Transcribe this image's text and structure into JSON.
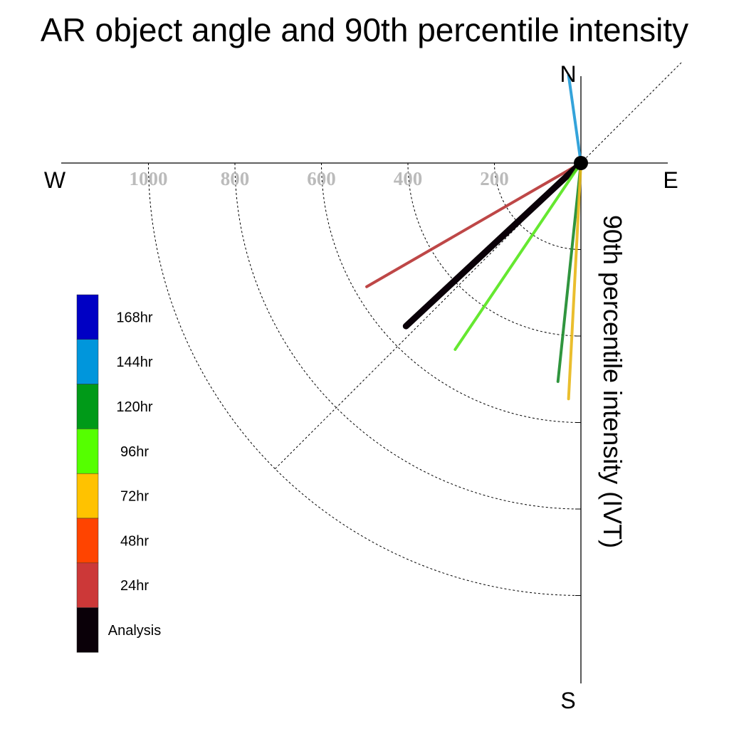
{
  "chart_data": {
    "type": "polar-vector",
    "title": "AR object angle and 90th percentile intensity",
    "radial_axis_label": "90th percentile intensity (IVT)",
    "compass_labels": {
      "north": "N",
      "south": "S",
      "east": "E",
      "west": "W"
    },
    "radial_ticks": [
      200,
      400,
      600,
      800,
      1000
    ],
    "radial_range": [
      0,
      1200
    ],
    "grid": true,
    "legend_position": "left",
    "legend": [
      {
        "label": "168hr",
        "color": "#0000c4"
      },
      {
        "label": "144hr",
        "color": "#0096dc"
      },
      {
        "label": "120hr",
        "color": "#009a18"
      },
      {
        "label": "96hr",
        "color": "#55ff00"
      },
      {
        "label": "72hr",
        "color": "#ffc200"
      },
      {
        "label": "48hr",
        "color": "#ff4400"
      },
      {
        "label": "24hr",
        "color": "#cc3838"
      },
      {
        "label": "Analysis",
        "color": "#0a0008"
      }
    ],
    "series": [
      {
        "name": "144hr",
        "color": "#1f9ad6",
        "direction_deg": 352,
        "intensity": 205
      },
      {
        "name": "24hr",
        "color": "#b83434",
        "direction_deg": 240,
        "intensity": 572
      },
      {
        "name": "Analysis",
        "color": "#0a0008",
        "direction_deg": 227,
        "intensity": 553
      },
      {
        "name": "96hr",
        "color": "#55e61a",
        "direction_deg": 214,
        "intensity": 520
      },
      {
        "name": "120hr",
        "color": "#1a8a2a",
        "direction_deg": 186,
        "intensity": 508
      },
      {
        "name": "72hr",
        "color": "#e8b818",
        "direction_deg": 183,
        "intensity": 546
      }
    ]
  }
}
